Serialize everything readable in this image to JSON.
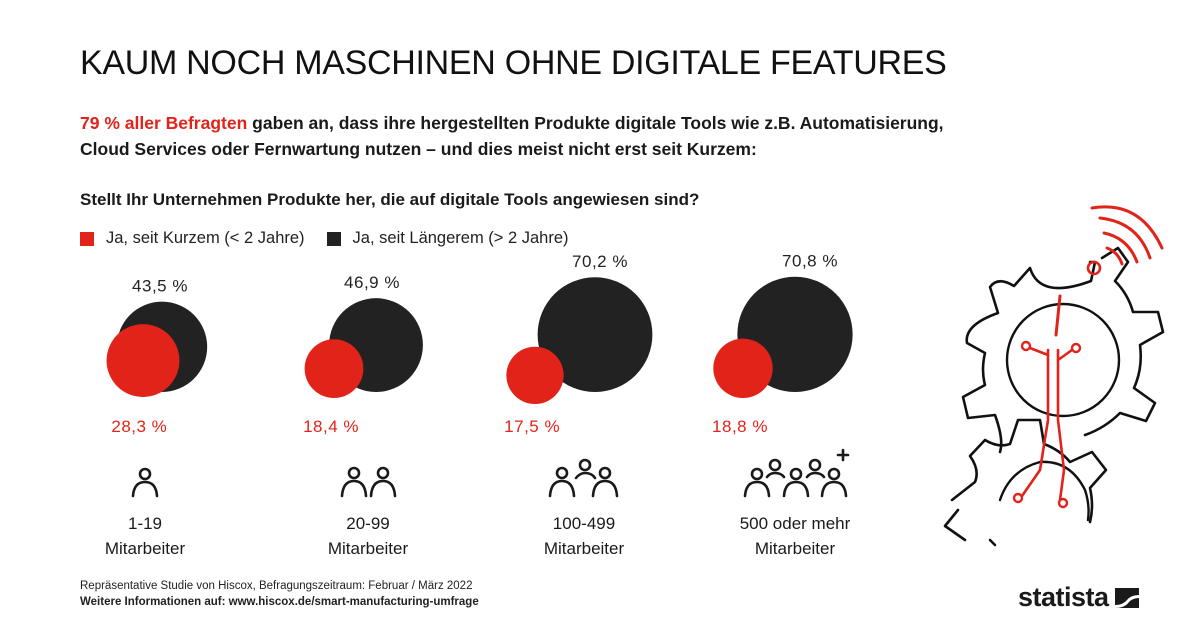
{
  "title": "KAUM NOCH MASCHINEN OHNE DIGITALE FEATURES",
  "intro": {
    "highlight": "79 % aller Befragten",
    "text": " gaben an, dass ihre hergestellten Produkte digitale Tools wie z.B. Automatisierung, Cloud Services oder Fernwartung nutzen – und dies meist nicht erst seit Kurzem:"
  },
  "question": "Stellt Ihr Unternehmen Produkte her, die auf digitale Tools angewiesen sind?",
  "chart_data": {
    "type": "bubble",
    "categories": [
      "1-19 Mitarbeiter",
      "20-99 Mitarbeiter",
      "100-499 Mitarbeiter",
      "500 oder mehr Mitarbeiter"
    ],
    "series": [
      {
        "name": "Ja, seit Kurzem (< 2 Jahre)",
        "color": "#e2231a",
        "values": [
          28.3,
          18.4,
          17.5,
          18.8
        ],
        "labels": [
          "28,3 %",
          "18,4 %",
          "17,5 %",
          "18,8 %"
        ]
      },
      {
        "name": "Ja, seit Längerem (> 2 Jahre)",
        "color": "#222222",
        "values": [
          43.5,
          46.9,
          70.2,
          70.8
        ],
        "labels": [
          "43,5 %",
          "46,9 %",
          "70,2 %",
          "70,8 %"
        ]
      }
    ],
    "legend_position": "top-left"
  },
  "groups": [
    {
      "line1": "1-19",
      "line2": "Mitarbeiter",
      "icon": "one-person-icon"
    },
    {
      "line1": "20-99",
      "line2": "Mitarbeiter",
      "icon": "two-people-icon"
    },
    {
      "line1": "100-499",
      "line2": "Mitarbeiter",
      "icon": "three-people-icon"
    },
    {
      "line1": "500 oder mehr",
      "line2": "Mitarbeiter",
      "icon": "four-people-plus-icon"
    }
  ],
  "footer": {
    "source": "Repräsentative Studie von Hiscox, Befragungszeitraum: Februar / März 2022",
    "more_info": "Weitere Informationen auf: www.hiscox.de/smart-manufacturing-umfrage"
  },
  "brand": "statista",
  "colors": {
    "accent": "#e2231a",
    "dark": "#222222"
  }
}
